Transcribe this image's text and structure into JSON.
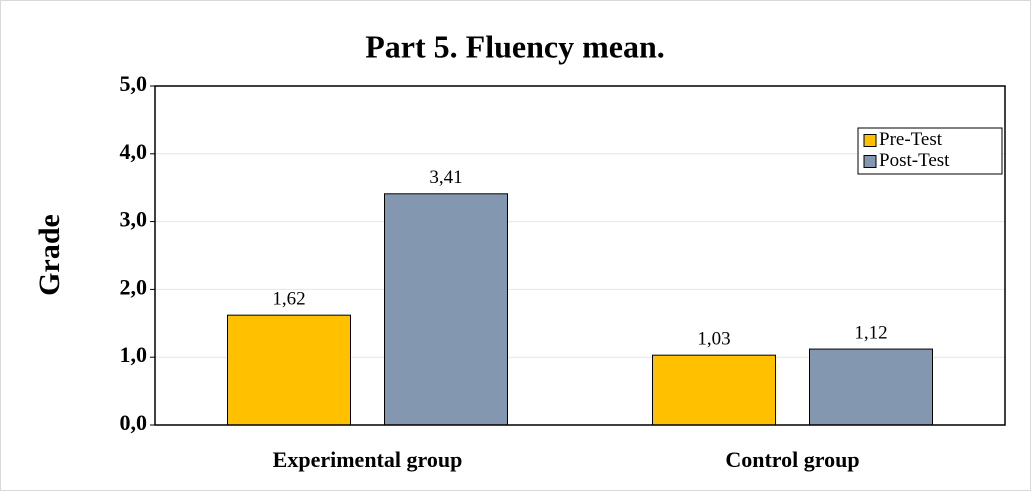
{
  "chart_data": {
    "type": "bar",
    "title": "Part 5. Fluency mean.",
    "y_label": "Grade",
    "categories": [
      "Experimental group",
      "Control group"
    ],
    "series": [
      {
        "name": "Pre-Test",
        "color": "#ffc000",
        "values": [
          1.62,
          1.03
        ],
        "value_labels": [
          "1,62",
          "1,03"
        ]
      },
      {
        "name": "Post-Test",
        "color": "#8497b0",
        "values": [
          3.41,
          1.12
        ],
        "value_labels": [
          "3,41",
          "1,12"
        ]
      }
    ],
    "ylim": [
      0,
      5
    ],
    "yticks": [
      {
        "value": 0,
        "label": "0,0"
      },
      {
        "value": 1,
        "label": "1,0"
      },
      {
        "value": 2,
        "label": "2,0"
      },
      {
        "value": 3,
        "label": "3,0"
      },
      {
        "value": 4,
        "label": "4,0"
      },
      {
        "value": 5,
        "label": "5,0"
      }
    ],
    "grid": true,
    "legend": "upper right"
  }
}
